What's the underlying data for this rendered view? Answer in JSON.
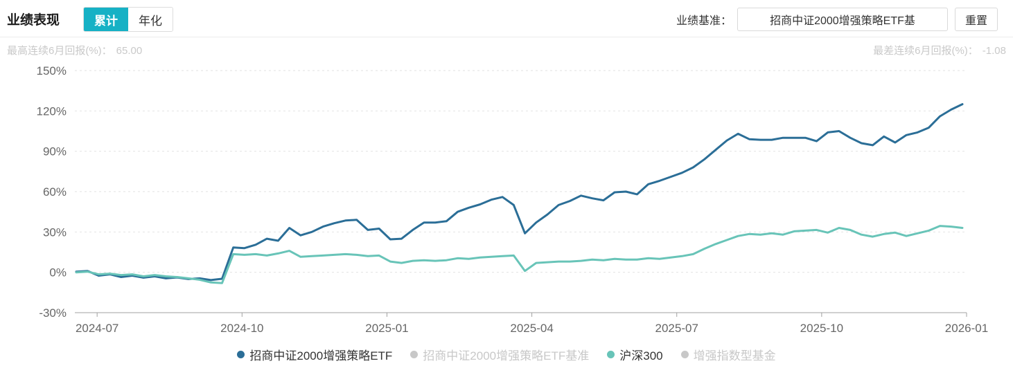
{
  "header": {
    "title": "业绩表现",
    "tabs": [
      {
        "label": "累计",
        "active": true
      },
      {
        "label": "年化",
        "active": false
      }
    ],
    "benchmark_label": "业绩基准：",
    "benchmark_value": "招商中证2000增强策略ETF基",
    "reset_label": "重置"
  },
  "stats": {
    "best_label": "最高连续6月回报(%)：",
    "best_value": "65.00",
    "worst_label": "最差连续6月回报(%)：",
    "worst_value": "-1.08"
  },
  "colors": {
    "accent_tab": "#16b1c5",
    "series_main": "#2b6e97",
    "series_hs300": "#68c4b8",
    "inactive_gray": "#c8c8c8",
    "gridline": "#e2e2e2",
    "axis_line": "#a0a0a0",
    "axis_text": "#666666"
  },
  "chart_data": {
    "type": "line",
    "title": "业绩表现-累计",
    "xlabel": "",
    "ylabel": "",
    "ylim": [
      -30,
      150
    ],
    "grid": true,
    "legend_position": "bottom",
    "y_ticks": [
      "150%",
      "120%",
      "90%",
      "60%",
      "30%",
      "0%",
      "-30%"
    ],
    "x_ticks": [
      "2024-07",
      "2024-10",
      "2025-01",
      "2025-04",
      "2025-07",
      "2025-10",
      "2026-01"
    ],
    "x_range": [
      "2024-06",
      "2026-01"
    ],
    "series": [
      {
        "name": "招商中证2000增强策略ETF",
        "color": "#2b6e97",
        "visible": true,
        "values": [
          0.5,
          1,
          -2.5,
          -1.5,
          -3.5,
          -2.5,
          -4,
          -3,
          -4.5,
          -3.8,
          -5,
          -4.5,
          -5.8,
          -4.8,
          18.5,
          18,
          20.5,
          25,
          23.5,
          33,
          27.5,
          30,
          34,
          36.5,
          38.5,
          39,
          31.5,
          32.5,
          24.5,
          25,
          31.5,
          37,
          37,
          38,
          45,
          48,
          50.5,
          54,
          56,
          50,
          29,
          37,
          43,
          50,
          53,
          57,
          55,
          53.5,
          59.5,
          60,
          58,
          65.5,
          68,
          71,
          74,
          78,
          84,
          91,
          98,
          103,
          99,
          98.5,
          98.5,
          100,
          100,
          100,
          97.5,
          104,
          105,
          100,
          96,
          94.5,
          101,
          96.5,
          102,
          104,
          107.5,
          116,
          121,
          125
        ]
      },
      {
        "name": "招商中证2000增强策略ETF基准",
        "color": "#c8c8c8",
        "visible": false,
        "values": []
      },
      {
        "name": "沪深300",
        "color": "#68c4b8",
        "visible": true,
        "values": [
          0,
          0.5,
          -1.5,
          -1,
          -2,
          -1.5,
          -3,
          -2,
          -3,
          -3.5,
          -4.5,
          -5.5,
          -7.5,
          -8,
          13.5,
          13,
          13.5,
          12.5,
          14,
          16,
          11.5,
          12,
          12.5,
          13,
          13.5,
          13,
          12,
          12.5,
          8,
          7,
          8.5,
          9,
          8.5,
          9,
          10.5,
          10,
          11,
          11.5,
          12,
          12.5,
          1,
          7,
          7.5,
          8,
          8,
          8.5,
          9.5,
          9,
          10,
          9.5,
          9.5,
          10.5,
          10,
          11,
          12,
          13.5,
          17.5,
          21,
          24,
          27,
          28.5,
          28,
          29,
          28,
          30.5,
          31,
          31.5,
          29.5,
          33,
          31.5,
          28,
          26.5,
          28.5,
          29.5,
          27,
          29,
          31,
          34.5,
          34,
          33
        ]
      },
      {
        "name": "增强指数型基金",
        "color": "#c8c8c8",
        "visible": false,
        "values": []
      }
    ]
  }
}
